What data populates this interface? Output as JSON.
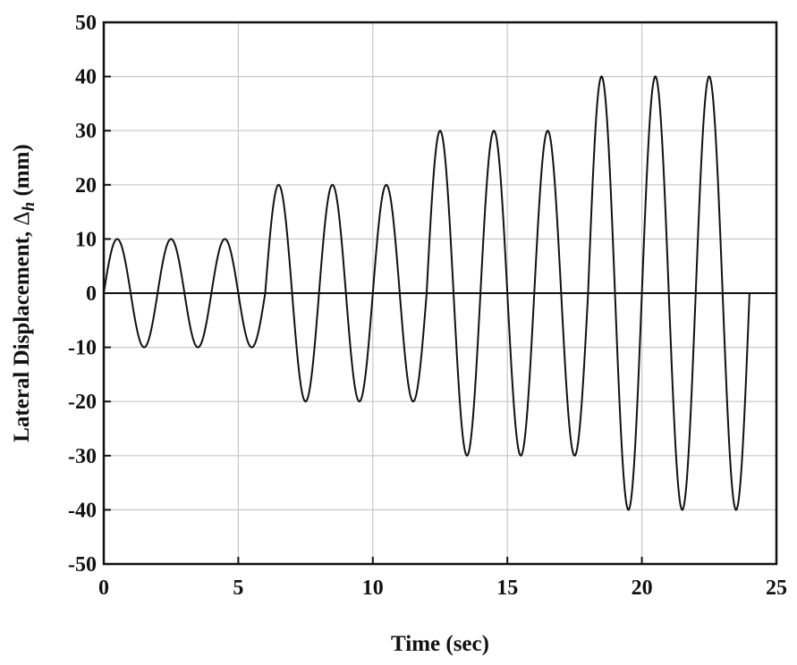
{
  "chart_data": {
    "type": "line",
    "xlabel": "Time (sec)",
    "ylabel_main": "Lateral Displacement, ",
    "ylabel_symbol": "Δ",
    "ylabel_subscript": "h",
    "ylabel_unit": " (mm)",
    "xlim": [
      0,
      25
    ],
    "ylim": [
      -50,
      50
    ],
    "xticks": [
      0,
      5,
      10,
      15,
      20,
      25
    ],
    "yticks": [
      -50,
      -40,
      -30,
      -20,
      -10,
      0,
      10,
      20,
      30,
      40,
      50
    ],
    "grid": true,
    "line_color": "#111111",
    "grid_color": "#c8c8c8",
    "series": [
      {
        "period_sec": 2,
        "cycles": [
          {
            "t_start": 0,
            "t_end": 2,
            "amplitude": 10
          },
          {
            "t_start": 2,
            "t_end": 4,
            "amplitude": 10
          },
          {
            "t_start": 4,
            "t_end": 6,
            "amplitude": 10
          },
          {
            "t_start": 6,
            "t_end": 8,
            "amplitude": 20
          },
          {
            "t_start": 8,
            "t_end": 10,
            "amplitude": 20
          },
          {
            "t_start": 10,
            "t_end": 12,
            "amplitude": 20
          },
          {
            "t_start": 12,
            "t_end": 14,
            "amplitude": 30
          },
          {
            "t_start": 14,
            "t_end": 16,
            "amplitude": 30
          },
          {
            "t_start": 16,
            "t_end": 18,
            "amplitude": 30
          },
          {
            "t_start": 18,
            "t_end": 20,
            "amplitude": 40
          },
          {
            "t_start": 20,
            "t_end": 22,
            "amplitude": 40
          },
          {
            "t_start": 22,
            "t_end": 24,
            "amplitude": 40
          }
        ]
      }
    ]
  }
}
